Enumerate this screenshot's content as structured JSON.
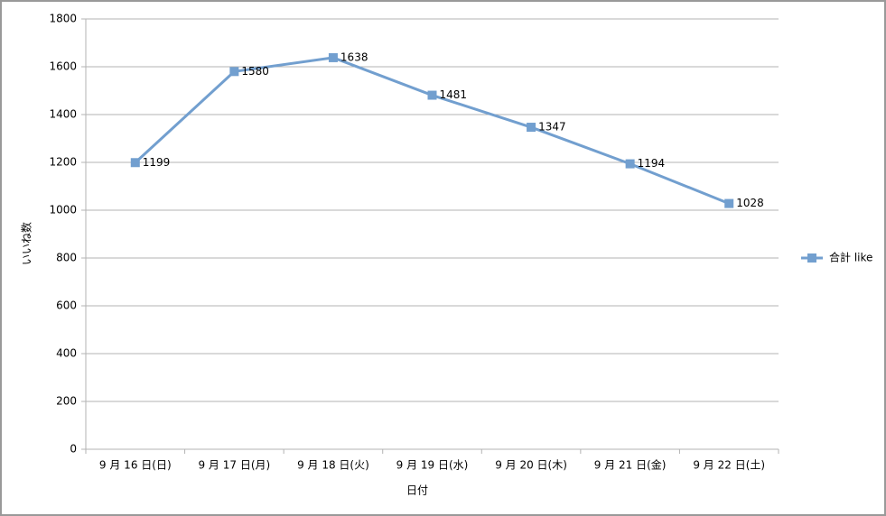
{
  "chart_data": {
    "type": "line",
    "x_label": "日付",
    "y_label": "いいね数",
    "categories": [
      "9 月 16 日(日)",
      "9 月 17 日(月)",
      "9 月 18 日(火)",
      "9 月 19 日(水)",
      "9 月 20 日(木)",
      "9 月 21 日(金)",
      "9 月 22 日(土)"
    ],
    "series": [
      {
        "name": "合計 like",
        "color": "#729fcf",
        "values": [
          1199,
          1580,
          1638,
          1481,
          1347,
          1194,
          1028
        ]
      }
    ],
    "ylim": [
      0,
      1800
    ],
    "yticks": [
      0,
      200,
      400,
      600,
      800,
      1000,
      1200,
      1400,
      1600,
      1800
    ],
    "grid": true,
    "legend": "right",
    "data_labels": true
  }
}
